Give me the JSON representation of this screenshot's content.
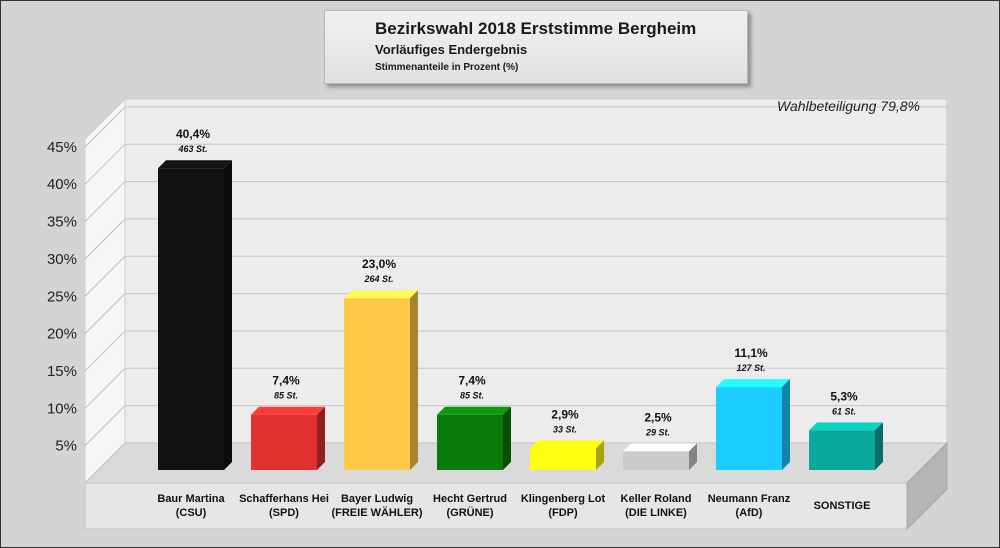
{
  "header": {
    "title": "Bezirkswahl 2018 Erststimme Bergheim",
    "subtitle": "Vorläufiges Endergebnis",
    "unit_note": "Stimmenanteile in Prozent (%)"
  },
  "turnout": "Wahlbeteiligung 79,8%",
  "chart_data": {
    "type": "bar",
    "title": "Bezirkswahl 2018 Erststimme Bergheim",
    "subtitle": "Vorläufiges Endergebnis",
    "ylabel": "",
    "xlabel": "",
    "ylim": [
      0,
      45
    ],
    "yticks": [
      5,
      10,
      15,
      20,
      25,
      30,
      35,
      40,
      45
    ],
    "ytick_labels": [
      "5%",
      "10%",
      "15%",
      "20%",
      "25%",
      "30%",
      "35%",
      "40%",
      "45%"
    ],
    "grid": true,
    "categories": [
      "Baur Martina (CSU)",
      "Schafferhans Hei (SPD)",
      "Bayer Ludwig (FREIE WÄHLER)",
      "Hecht Gertrud (GRÜNE)",
      "Klingenberg Lot (FDP)",
      "Keller Roland (DIE LINKE)",
      "Neumann Franz (AfD)",
      "SONSTIGE"
    ],
    "names": [
      "Baur Martina",
      "Schafferhans Hei",
      "Bayer Ludwig",
      "Hecht Gertrud",
      "Klingenberg Lot",
      "Keller Roland",
      "Neumann Franz",
      "SONSTIGE"
    ],
    "parties": [
      "(CSU)",
      "(SPD)",
      "(FREIE WÄHLER)",
      "(GRÜNE)",
      "(FDP)",
      "(DIE LINKE)",
      "(AfD)",
      ""
    ],
    "values": [
      40.4,
      7.4,
      23.0,
      7.4,
      2.9,
      2.5,
      11.1,
      5.3
    ],
    "value_labels": [
      "40,4%",
      "7,4%",
      "23,0%",
      "7,4%",
      "2,9%",
      "2,5%",
      "11,1%",
      "5,3%"
    ],
    "votes": [
      "463 St.",
      "85 St.",
      "264 St.",
      "85 St.",
      "33 St.",
      "29 St.",
      "127 St.",
      "61 St."
    ],
    "colors": [
      "#111111",
      "#e03030",
      "#ffc947",
      "#0a7a0a",
      "#ffff10",
      "#cacaca",
      "#1ccbff",
      "#0aa79d"
    ]
  }
}
